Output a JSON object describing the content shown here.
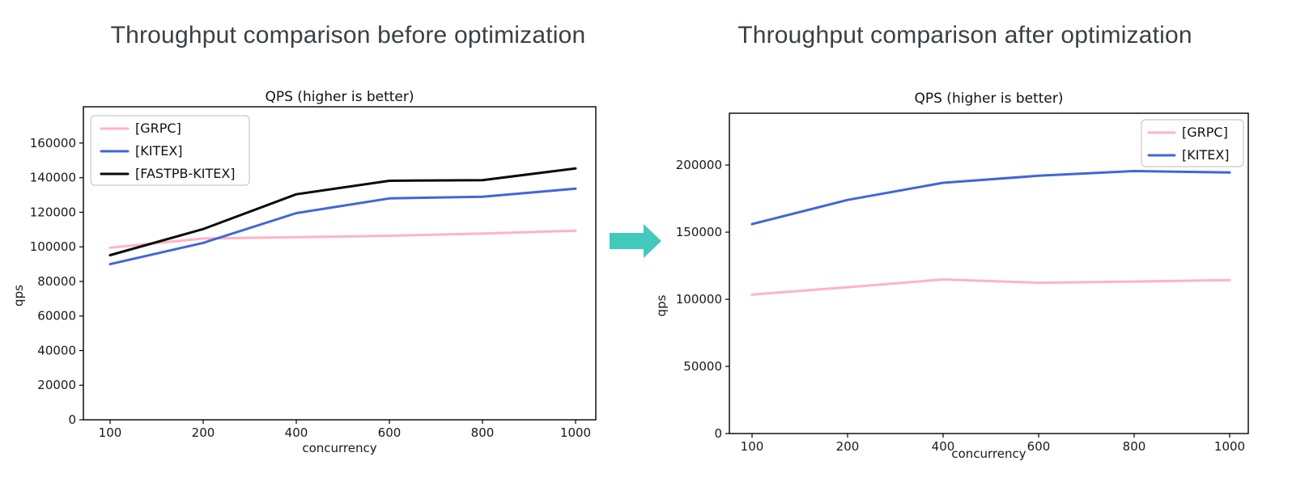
{
  "headings": {
    "before": "Throughput comparison before optimization",
    "after": "Throughput comparison after optimization"
  },
  "arrow": {
    "direction": "right",
    "color": "#41C9BC"
  },
  "chart_data": [
    {
      "id": "before",
      "type": "line",
      "title": "QPS (higher is better)",
      "xlabel": "concurrency",
      "ylabel": "qps",
      "categories": [
        100,
        200,
        400,
        600,
        800,
        1000
      ],
      "x_tick_labels": [
        "100",
        "200",
        "400",
        "600",
        "800",
        "1000"
      ],
      "y_ticks": [
        0,
        20000,
        40000,
        60000,
        80000,
        100000,
        120000,
        140000,
        160000
      ],
      "ylim": [
        0,
        181000
      ],
      "grid": false,
      "legend_position": "upper left",
      "series": [
        {
          "name": "[GRPC]",
          "color": "#FFB3C3",
          "values": [
            99500,
            104800,
            105600,
            106400,
            107700,
            109300
          ]
        },
        {
          "name": "[KITEX]",
          "color": "#4166D8",
          "values": [
            90000,
            102300,
            119500,
            128000,
            129000,
            133600
          ]
        },
        {
          "name": "[FASTPB-KITEX]",
          "color": "#0A0A0A",
          "values": [
            95200,
            110300,
            130400,
            138200,
            138600,
            145300
          ]
        }
      ]
    },
    {
      "id": "after",
      "type": "line",
      "title": "QPS (higher is better)",
      "xlabel": "concurrency",
      "ylabel": "qps",
      "categories": [
        100,
        200,
        400,
        600,
        800,
        1000
      ],
      "x_tick_labels": [
        "100",
        "200",
        "400",
        "600",
        "800",
        "1000"
      ],
      "y_ticks": [
        0,
        50000,
        100000,
        150000,
        200000
      ],
      "ylim": [
        0,
        238600
      ],
      "grid": false,
      "legend_position": "upper right",
      "series": [
        {
          "name": "[GRPC]",
          "color": "#FFB3C3",
          "values": [
            103500,
            109000,
            114800,
            112300,
            113200,
            114300
          ]
        },
        {
          "name": "[KITEX]",
          "color": "#4166D8",
          "values": [
            156000,
            174000,
            186800,
            192000,
            195500,
            194500
          ]
        }
      ]
    }
  ]
}
